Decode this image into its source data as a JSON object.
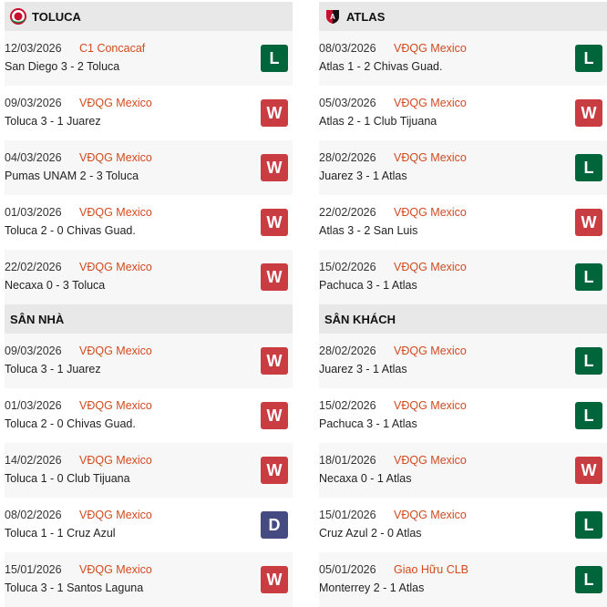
{
  "colors": {
    "L": "#00653a",
    "W": "#c93c42",
    "D": "#454a80",
    "competition": "#d24a1e"
  },
  "panels": [
    {
      "title": "TOLUCA",
      "icon": "toluca-logo-icon",
      "matches": [
        {
          "date": "12/03/2026",
          "comp": "C1 Concacaf",
          "match": "San Diego 3 - 2 Toluca",
          "result": "L"
        },
        {
          "date": "09/03/2026",
          "comp": "VĐQG Mexico",
          "match": "Toluca 3 - 1 Juarez",
          "result": "W"
        },
        {
          "date": "04/03/2026",
          "comp": "VĐQG Mexico",
          "match": "Pumas UNAM 2 - 3 Toluca",
          "result": "W"
        },
        {
          "date": "01/03/2026",
          "comp": "VĐQG Mexico",
          "match": "Toluca 2 - 0 Chivas Guad.",
          "result": "W"
        },
        {
          "date": "22/02/2026",
          "comp": "VĐQG Mexico",
          "match": "Necaxa 0 - 3 Toluca",
          "result": "W"
        }
      ]
    },
    {
      "title": "ATLAS",
      "icon": "atlas-logo-icon",
      "matches": [
        {
          "date": "08/03/2026",
          "comp": "VĐQG Mexico",
          "match": "Atlas 1 - 2 Chivas Guad.",
          "result": "L"
        },
        {
          "date": "05/03/2026",
          "comp": "VĐQG Mexico",
          "match": "Atlas 2 - 1 Club Tijuana",
          "result": "W"
        },
        {
          "date": "28/02/2026",
          "comp": "VĐQG Mexico",
          "match": "Juarez 3 - 1 Atlas",
          "result": "L"
        },
        {
          "date": "22/02/2026",
          "comp": "VĐQG Mexico",
          "match": "Atlas 3 - 2 San Luis",
          "result": "W"
        },
        {
          "date": "15/02/2026",
          "comp": "VĐQG Mexico",
          "match": "Pachuca 3 - 1 Atlas",
          "result": "L"
        }
      ]
    },
    {
      "title": "SÂN NHÀ",
      "matches": [
        {
          "date": "09/03/2026",
          "comp": "VĐQG Mexico",
          "match": "Toluca 3 - 1 Juarez",
          "result": "W"
        },
        {
          "date": "01/03/2026",
          "comp": "VĐQG Mexico",
          "match": "Toluca 2 - 0 Chivas Guad.",
          "result": "W"
        },
        {
          "date": "14/02/2026",
          "comp": "VĐQG Mexico",
          "match": "Toluca 1 - 0 Club Tijuana",
          "result": "W"
        },
        {
          "date": "08/02/2026",
          "comp": "VĐQG Mexico",
          "match": "Toluca 1 - 1 Cruz Azul",
          "result": "D"
        },
        {
          "date": "15/01/2026",
          "comp": "VĐQG Mexico",
          "match": "Toluca 3 - 1 Santos Laguna",
          "result": "W"
        }
      ]
    },
    {
      "title": "SÂN KHÁCH",
      "matches": [
        {
          "date": "28/02/2026",
          "comp": "VĐQG Mexico",
          "match": "Juarez 3 - 1 Atlas",
          "result": "L"
        },
        {
          "date": "15/02/2026",
          "comp": "VĐQG Mexico",
          "match": "Pachuca 3 - 1 Atlas",
          "result": "L"
        },
        {
          "date": "18/01/2026",
          "comp": "VĐQG Mexico",
          "match": "Necaxa 0 - 1 Atlas",
          "result": "W"
        },
        {
          "date": "15/01/2026",
          "comp": "VĐQG Mexico",
          "match": "Cruz Azul 2 - 0 Atlas",
          "result": "L"
        },
        {
          "date": "05/01/2026",
          "comp": "Giao Hữu CLB",
          "match": "Monterrey 2 - 1 Atlas",
          "result": "L"
        }
      ]
    }
  ]
}
